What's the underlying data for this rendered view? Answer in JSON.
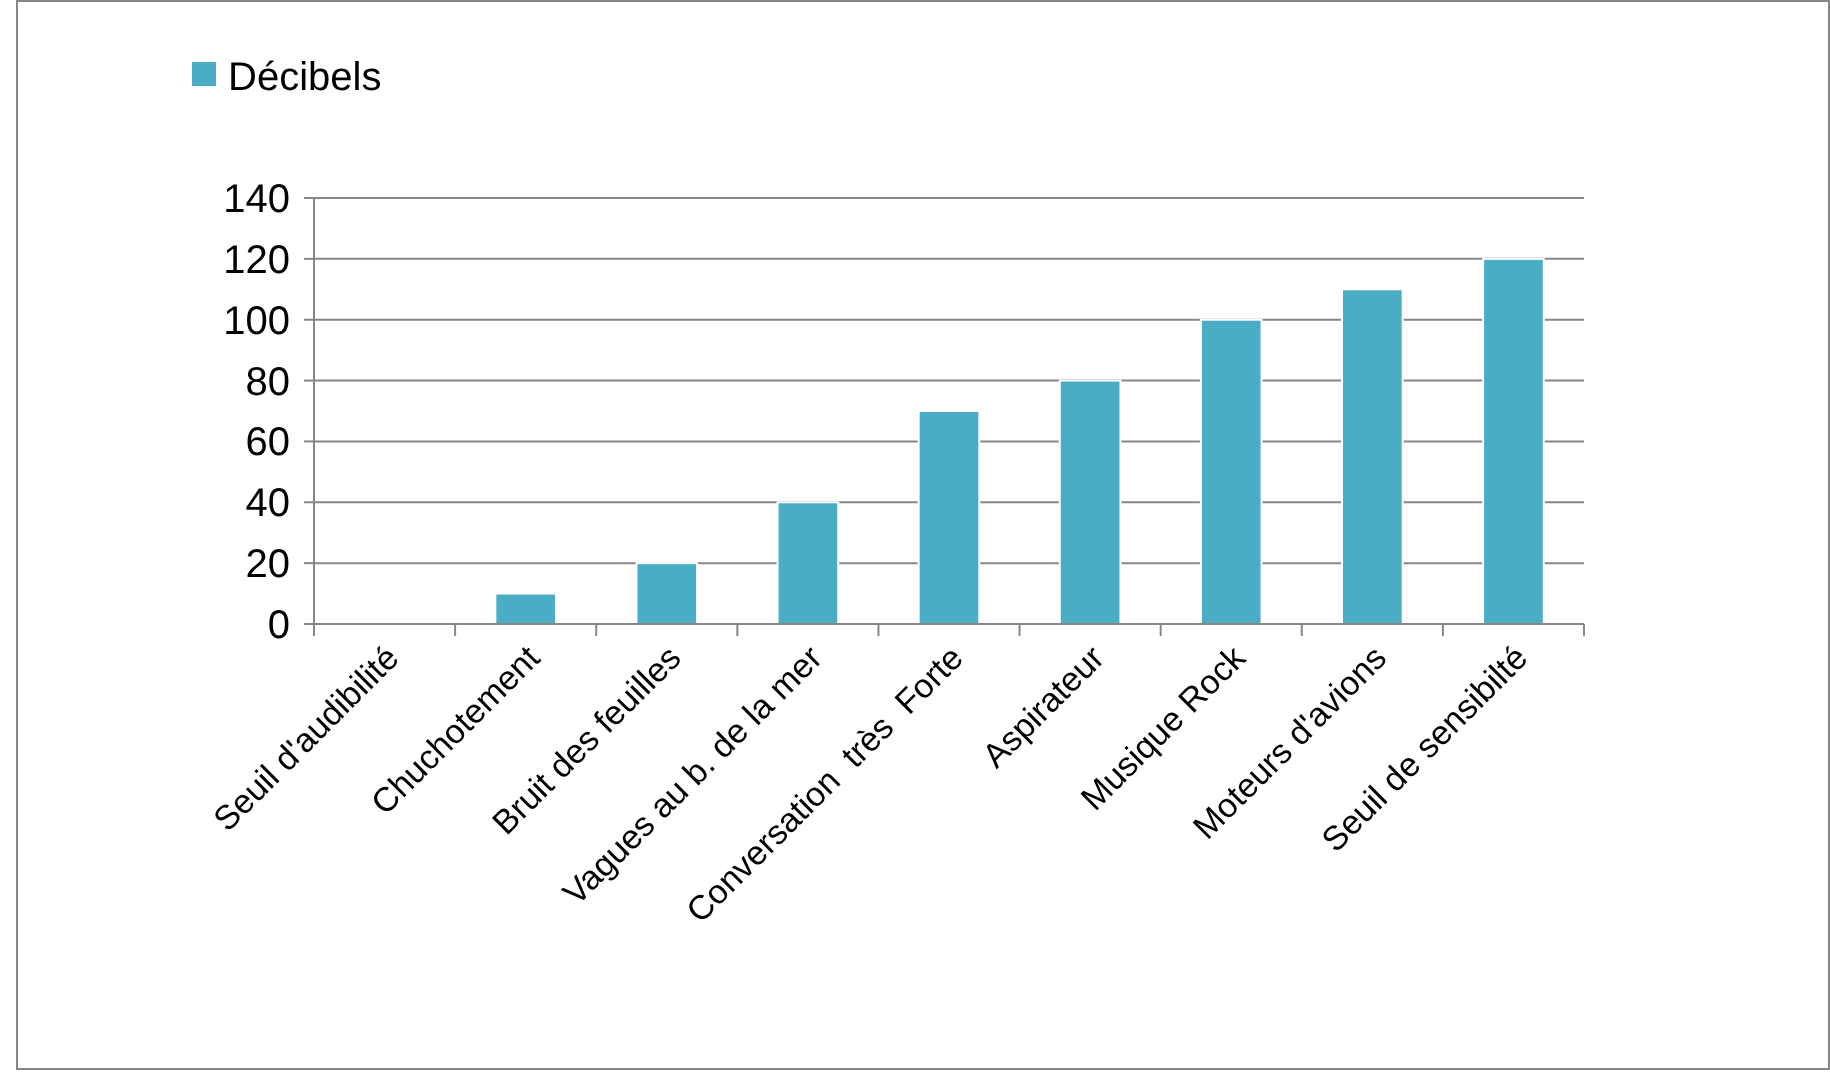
{
  "chart_data": {
    "type": "bar",
    "categories": [
      "Seuil d'audibilité",
      "Chuchotement",
      "Bruit des feuilles",
      "Vagues au b. de la mer",
      "Conversation  très  Forte",
      "Aspirateur",
      "Musique Rock",
      "Moteurs d'avions",
      "Seuil de sensibilté"
    ],
    "series": [
      {
        "name": "Décibels",
        "color": "#4bacc6",
        "values": [
          0,
          10,
          20,
          40,
          70,
          80,
          100,
          110,
          120
        ]
      }
    ],
    "ylim": [
      0,
      140
    ],
    "yticks": [
      0,
      20,
      40,
      60,
      80,
      100,
      120,
      140
    ],
    "grid": "y",
    "legend": "top left"
  }
}
